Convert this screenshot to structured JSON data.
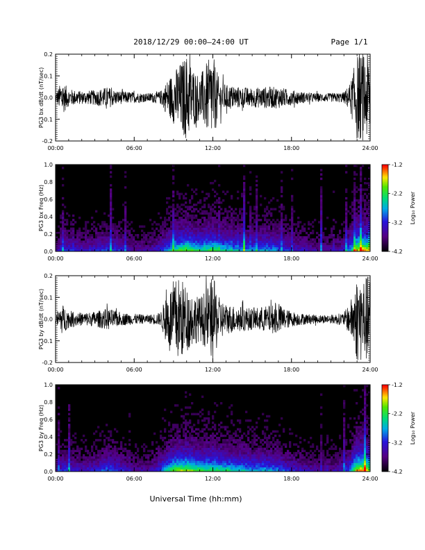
{
  "header": {
    "title": "2018/12/29  00:00–24:00 UT",
    "page": "Page 1/1"
  },
  "xlabel": "Universal Time (hh:mm)",
  "chart_data": [
    {
      "type": "line",
      "ylabel": "PG3 bx dB/dt (nT/sec)",
      "xlim": [
        0,
        24
      ],
      "ylim": [
        -0.2,
        0.2
      ],
      "x_ticks": [
        "00:00",
        "06:00",
        "12:00",
        "18:00",
        "24:00"
      ],
      "y_ticks": [
        "-0.2",
        "-0.1",
        "0.0",
        "0.1",
        "0.2"
      ],
      "y_tick_values": [
        -0.2,
        -0.1,
        0.0,
        0.1,
        0.2
      ],
      "color": "#000000",
      "envelope": {
        "hours": [
          0,
          0.25,
          0.5,
          1,
          2,
          3,
          4,
          4.5,
          5,
          6,
          7,
          8,
          8.5,
          9,
          9.5,
          10,
          10.5,
          11,
          11.5,
          12,
          12.5,
          13,
          14,
          15,
          16,
          17,
          18,
          19,
          20,
          21,
          22,
          22.5,
          23,
          23.5,
          24
        ],
        "amplitude": [
          0.02,
          0.05,
          0.08,
          0.04,
          0.03,
          0.035,
          0.05,
          0.035,
          0.03,
          0.025,
          0.02,
          0.03,
          0.08,
          0.12,
          0.16,
          0.2,
          0.14,
          0.1,
          0.16,
          0.2,
          0.08,
          0.06,
          0.05,
          0.045,
          0.05,
          0.05,
          0.035,
          0.025,
          0.02,
          0.02,
          0.025,
          0.07,
          0.2,
          0.2,
          0.2
        ]
      }
    },
    {
      "type": "heatmap",
      "ylabel": "PG3 bx Freq (Hz)",
      "xlim": [
        0,
        24
      ],
      "ylim": [
        0.0,
        1.0
      ],
      "x_ticks": [
        "00:00",
        "06:00",
        "12:00",
        "18:00",
        "24:00"
      ],
      "y_ticks": [
        "0.0",
        "0.2",
        "0.4",
        "0.6",
        "0.8",
        "1.0"
      ],
      "y_tick_values": [
        0.0,
        0.2,
        0.4,
        0.6,
        0.8,
        1.0
      ],
      "colorbar": {
        "label": "Log₁₀ Power",
        "range": [
          -4.2,
          -1.2
        ],
        "ticks": [
          "-1.2",
          "-2.2",
          "-3.2",
          "-4.2"
        ],
        "tick_values": [
          -1.2,
          -2.2,
          -3.2,
          -4.2
        ]
      },
      "activity": {
        "hours": [
          0,
          0.5,
          1,
          2,
          3,
          4,
          5,
          6,
          7,
          8,
          9,
          10,
          11,
          12,
          13,
          14,
          15,
          16,
          17,
          18,
          19,
          20,
          21,
          22,
          22.5,
          23,
          23.5,
          24
        ],
        "level": [
          0.2,
          0.35,
          0.3,
          0.25,
          0.3,
          0.35,
          0.3,
          0.2,
          0.2,
          0.3,
          0.55,
          0.65,
          0.55,
          0.6,
          0.5,
          0.45,
          0.4,
          0.45,
          0.4,
          0.3,
          0.25,
          0.2,
          0.2,
          0.25,
          0.4,
          0.75,
          0.8,
          0.7
        ]
      }
    },
    {
      "type": "line",
      "ylabel": "PG3 by dB/dt (nT/sec)",
      "xlim": [
        0,
        24
      ],
      "ylim": [
        -0.2,
        0.2
      ],
      "x_ticks": [
        "00:00",
        "06:00",
        "12:00",
        "18:00",
        "24:00"
      ],
      "y_ticks": [
        "-0.2",
        "-0.1",
        "0.0",
        "0.1",
        "0.2"
      ],
      "y_tick_values": [
        -0.2,
        -0.1,
        0.0,
        0.1,
        0.2
      ],
      "color": "#000000",
      "envelope": {
        "hours": [
          0,
          0.25,
          0.5,
          1,
          2,
          3,
          4,
          4.5,
          5,
          6,
          7,
          8,
          8.5,
          9,
          9.5,
          10,
          10.5,
          11,
          11.5,
          12,
          12.5,
          13,
          14,
          15,
          16,
          17,
          17.5,
          18,
          19,
          20,
          21,
          22,
          22.5,
          23,
          23.5,
          24
        ],
        "amplitude": [
          0.02,
          0.05,
          0.07,
          0.04,
          0.03,
          0.035,
          0.05,
          0.04,
          0.03,
          0.025,
          0.02,
          0.03,
          0.12,
          0.18,
          0.2,
          0.15,
          0.12,
          0.1,
          0.14,
          0.2,
          0.1,
          0.07,
          0.06,
          0.05,
          0.06,
          0.07,
          0.05,
          0.035,
          0.025,
          0.02,
          0.02,
          0.03,
          0.08,
          0.2,
          0.2,
          0.2
        ]
      }
    },
    {
      "type": "heatmap",
      "ylabel": "PG3 by Freq (Hz)",
      "xlim": [
        0,
        24
      ],
      "ylim": [
        0.0,
        1.0
      ],
      "x_ticks": [
        "00:00",
        "06:00",
        "12:00",
        "18:00",
        "24:00"
      ],
      "y_ticks": [
        "0.0",
        "0.2",
        "0.4",
        "0.6",
        "0.8",
        "1.0"
      ],
      "y_tick_values": [
        0.0,
        0.2,
        0.4,
        0.6,
        0.8,
        1.0
      ],
      "colorbar": {
        "label": "Log₁₀ Power",
        "range": [
          -4.2,
          -1.2
        ],
        "ticks": [
          "-1.2",
          "-2.2",
          "-3.2",
          "-4.2"
        ],
        "tick_values": [
          -1.2,
          -2.2,
          -3.2,
          -4.2
        ]
      },
      "activity": {
        "hours": [
          0,
          0.5,
          1,
          2,
          3,
          4,
          5,
          6,
          7,
          8,
          9,
          10,
          11,
          12,
          13,
          14,
          15,
          16,
          17,
          18,
          19,
          20,
          21,
          22,
          22.5,
          23,
          23.5,
          24
        ],
        "level": [
          0.2,
          0.35,
          0.3,
          0.25,
          0.3,
          0.4,
          0.3,
          0.2,
          0.2,
          0.35,
          0.65,
          0.7,
          0.6,
          0.6,
          0.55,
          0.5,
          0.45,
          0.45,
          0.4,
          0.3,
          0.25,
          0.2,
          0.2,
          0.25,
          0.4,
          0.75,
          0.8,
          0.7
        ]
      }
    }
  ]
}
